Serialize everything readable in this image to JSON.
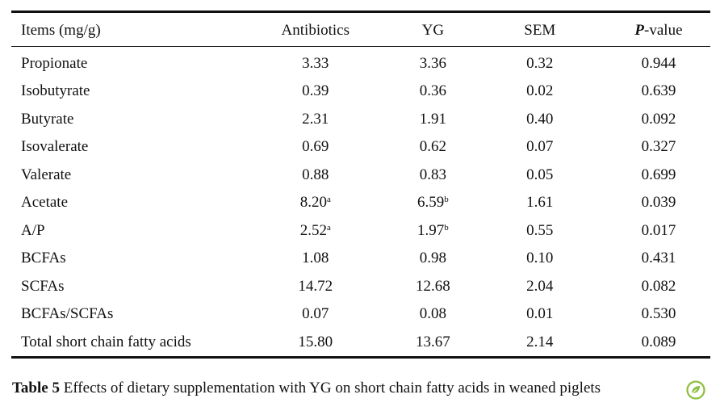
{
  "table": {
    "headers": {
      "item": "Items (mg/g)",
      "antibiotics": "Antibiotics",
      "yg": "YG",
      "sem": "SEM",
      "p_bold": "P",
      "p_rest": "-value"
    },
    "rows": [
      {
        "item": "Propionate",
        "antibiotics": "3.33",
        "antibiotics_sup": "",
        "yg": "3.36",
        "yg_sup": "",
        "sem": "0.32",
        "p": "0.944"
      },
      {
        "item": "Isobutyrate",
        "antibiotics": "0.39",
        "antibiotics_sup": "",
        "yg": "0.36",
        "yg_sup": "",
        "sem": "0.02",
        "p": "0.639"
      },
      {
        "item": "Butyrate",
        "antibiotics": "2.31",
        "antibiotics_sup": "",
        "yg": "1.91",
        "yg_sup": "",
        "sem": "0.40",
        "p": "0.092"
      },
      {
        "item": "Isovalerate",
        "antibiotics": "0.69",
        "antibiotics_sup": "",
        "yg": "0.62",
        "yg_sup": "",
        "sem": "0.07",
        "p": "0.327"
      },
      {
        "item": "Valerate",
        "antibiotics": "0.88",
        "antibiotics_sup": "",
        "yg": "0.83",
        "yg_sup": "",
        "sem": "0.05",
        "p": "0.699"
      },
      {
        "item": "Acetate",
        "antibiotics": "8.20",
        "antibiotics_sup": "a",
        "yg": "6.59",
        "yg_sup": "b",
        "sem": "1.61",
        "p": "0.039"
      },
      {
        "item": "A/P",
        "antibiotics": "2.52",
        "antibiotics_sup": "a",
        "yg": "1.97",
        "yg_sup": "b",
        "sem": "0.55",
        "p": "0.017"
      },
      {
        "item": "BCFAs",
        "antibiotics": "1.08",
        "antibiotics_sup": "",
        "yg": "0.98",
        "yg_sup": "",
        "sem": "0.10",
        "p": "0.431"
      },
      {
        "item": "SCFAs",
        "antibiotics": "14.72",
        "antibiotics_sup": "",
        "yg": "12.68",
        "yg_sup": "",
        "sem": "2.04",
        "p": "0.082"
      },
      {
        "item": "BCFAs/SCFAs",
        "antibiotics": "0.07",
        "antibiotics_sup": "",
        "yg": "0.08",
        "yg_sup": "",
        "sem": "0.01",
        "p": "0.530"
      },
      {
        "item": "Total short chain fatty acids",
        "antibiotics": "15.80",
        "antibiotics_sup": "",
        "yg": "13.67",
        "yg_sup": "",
        "sem": "2.14",
        "p": "0.089"
      }
    ]
  },
  "caption": {
    "label": "Table 5",
    "text": " Effects of dietary supplementation with YG on short chain fatty acids in weaned piglets"
  },
  "logo": {
    "icon": "leaf-seal-icon",
    "color": "#8cbf3f"
  }
}
